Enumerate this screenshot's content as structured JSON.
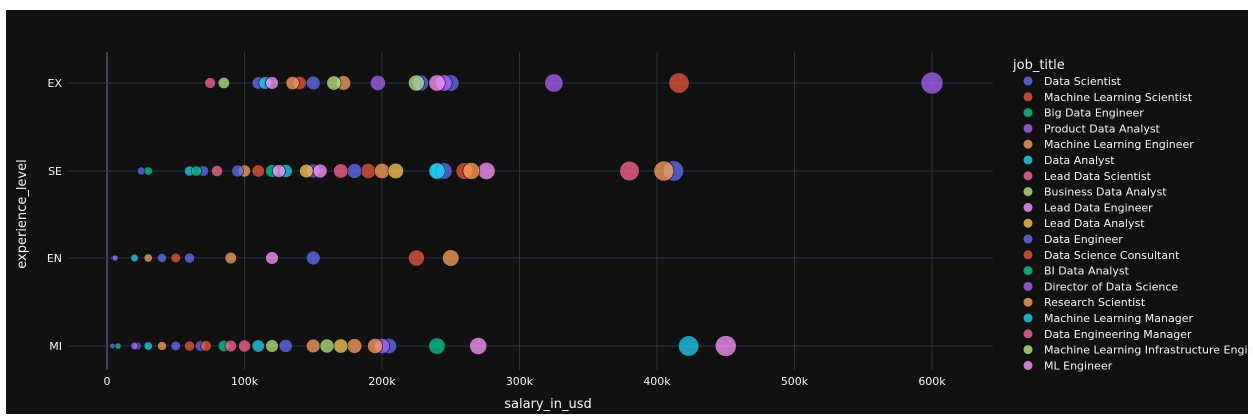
{
  "chart_data": {
    "type": "scatter",
    "xlabel": "salary_in_usd",
    "ylabel": "experience_level",
    "xlim": [
      -30000,
      645000
    ],
    "x_ticks": [
      0,
      100000,
      200000,
      300000,
      400000,
      500000,
      600000
    ],
    "x_tick_labels": [
      "0",
      "100k",
      "200k",
      "300k",
      "400k",
      "500k",
      "600k"
    ],
    "categories": [
      "MI",
      "EN",
      "SE",
      "EX"
    ],
    "grid": true,
    "legend_title": "job_title",
    "legend_position": "right",
    "series": [
      {
        "name": "Data Scientist",
        "color": "#636efa",
        "points": [
          {
            "x": 4000,
            "y": "MI"
          },
          {
            "x": 22000,
            "y": "MI"
          },
          {
            "x": 68000,
            "y": "MI"
          },
          {
            "x": 205000,
            "y": "MI"
          },
          {
            "x": 5000,
            "y": "EN"
          },
          {
            "x": 40000,
            "y": "EN"
          },
          {
            "x": 150000,
            "y": "EN"
          },
          {
            "x": 25000,
            "y": "SE"
          },
          {
            "x": 70000,
            "y": "SE"
          },
          {
            "x": 150000,
            "y": "SE"
          },
          {
            "x": 240000,
            "y": "SE"
          },
          {
            "x": 412000,
            "y": "SE"
          },
          {
            "x": 110000,
            "y": "EX"
          },
          {
            "x": 228000,
            "y": "EX"
          }
        ]
      },
      {
        "name": "Machine Learning Scientist",
        "color": "#ef553b",
        "points": [
          {
            "x": 72000,
            "y": "MI"
          },
          {
            "x": 225000,
            "y": "EN"
          },
          {
            "x": 190000,
            "y": "SE"
          },
          {
            "x": 260000,
            "y": "SE"
          },
          {
            "x": 416000,
            "y": "EX"
          },
          {
            "x": 140000,
            "y": "EX"
          }
        ]
      },
      {
        "name": "Big Data Engineer",
        "color": "#00cc96",
        "points": [
          {
            "x": 8000,
            "y": "MI"
          },
          {
            "x": 85000,
            "y": "MI"
          },
          {
            "x": 30000,
            "y": "SE"
          },
          {
            "x": 120000,
            "y": "SE"
          },
          {
            "x": 241000,
            "y": "SE"
          }
        ]
      },
      {
        "name": "Product Data Analyst",
        "color": "#ab63fa",
        "points": [
          {
            "x": 20000,
            "y": "MI"
          },
          {
            "x": 6000,
            "y": "EN"
          }
        ]
      },
      {
        "name": "Machine Learning Engineer",
        "color": "#ffa15a",
        "points": [
          {
            "x": 40000,
            "y": "MI"
          },
          {
            "x": 150000,
            "y": "MI"
          },
          {
            "x": 180000,
            "y": "MI"
          },
          {
            "x": 30000,
            "y": "EN"
          },
          {
            "x": 250000,
            "y": "EN"
          },
          {
            "x": 100000,
            "y": "SE"
          },
          {
            "x": 200000,
            "y": "SE"
          },
          {
            "x": 405000,
            "y": "SE"
          },
          {
            "x": 172000,
            "y": "EX"
          }
        ]
      },
      {
        "name": "Data Analyst",
        "color": "#19d3f3",
        "points": [
          {
            "x": 30000,
            "y": "MI"
          },
          {
            "x": 110000,
            "y": "MI"
          },
          {
            "x": 20000,
            "y": "EN"
          },
          {
            "x": 60000,
            "y": "SE"
          },
          {
            "x": 130000,
            "y": "SE"
          },
          {
            "x": 115000,
            "y": "EX"
          }
        ]
      },
      {
        "name": "Lead Data Scientist",
        "color": "#ff6692",
        "points": [
          {
            "x": 90000,
            "y": "MI"
          },
          {
            "x": 380000,
            "y": "SE"
          },
          {
            "x": 80000,
            "y": "SE"
          }
        ]
      },
      {
        "name": "Business Data Analyst",
        "color": "#b6e880",
        "points": [
          {
            "x": 120000,
            "y": "MI"
          },
          {
            "x": 85000,
            "y": "EX"
          },
          {
            "x": 165000,
            "y": "EX"
          }
        ]
      },
      {
        "name": "Lead Data Engineer",
        "color": "#ff97ff",
        "points": [
          {
            "x": 270000,
            "y": "MI"
          },
          {
            "x": 276000,
            "y": "SE"
          },
          {
            "x": 125000,
            "y": "SE"
          }
        ]
      },
      {
        "name": "Lead Data Analyst",
        "color": "#fecb52",
        "points": [
          {
            "x": 170000,
            "y": "MI"
          },
          {
            "x": 145000,
            "y": "SE"
          },
          {
            "x": 210000,
            "y": "SE"
          }
        ]
      },
      {
        "name": "Data Engineer",
        "color": "#636efa",
        "points": [
          {
            "x": 50000,
            "y": "MI"
          },
          {
            "x": 130000,
            "y": "MI"
          },
          {
            "x": 60000,
            "y": "EN"
          },
          {
            "x": 95000,
            "y": "SE"
          },
          {
            "x": 180000,
            "y": "SE"
          },
          {
            "x": 245000,
            "y": "SE"
          },
          {
            "x": 150000,
            "y": "EX"
          },
          {
            "x": 250000,
            "y": "EX"
          }
        ]
      },
      {
        "name": "Data Science Consultant",
        "color": "#ef553b",
        "points": [
          {
            "x": 60000,
            "y": "MI"
          },
          {
            "x": 50000,
            "y": "EN"
          },
          {
            "x": 110000,
            "y": "SE"
          }
        ]
      },
      {
        "name": "BI Data Analyst",
        "color": "#00cc96",
        "points": [
          {
            "x": 240000,
            "y": "MI"
          },
          {
            "x": 65000,
            "y": "SE"
          }
        ]
      },
      {
        "name": "Director of Data Science",
        "color": "#ab63fa",
        "points": [
          {
            "x": 200000,
            "y": "MI"
          },
          {
            "x": 325000,
            "y": "EX"
          },
          {
            "x": 600000,
            "y": "EX"
          },
          {
            "x": 197000,
            "y": "EX"
          },
          {
            "x": 245000,
            "y": "EX"
          }
        ]
      },
      {
        "name": "Research Scientist",
        "color": "#ffa15a",
        "points": [
          {
            "x": 195000,
            "y": "MI"
          },
          {
            "x": 90000,
            "y": "EN"
          },
          {
            "x": 265000,
            "y": "SE"
          },
          {
            "x": 135000,
            "y": "EX"
          }
        ]
      },
      {
        "name": "Machine Learning Manager",
        "color": "#19d3f3",
        "points": [
          {
            "x": 423000,
            "y": "MI"
          },
          {
            "x": 240000,
            "y": "SE"
          }
        ]
      },
      {
        "name": "Data Engineering Manager",
        "color": "#ff6692",
        "points": [
          {
            "x": 75000,
            "y": "EX"
          },
          {
            "x": 170000,
            "y": "SE"
          },
          {
            "x": 100000,
            "y": "MI"
          }
        ]
      },
      {
        "name": "Machine Learning Infrastructure Engineer",
        "color": "#b6e880",
        "points": [
          {
            "x": 225000,
            "y": "EX"
          },
          {
            "x": 160000,
            "y": "MI"
          }
        ]
      },
      {
        "name": "ML Engineer",
        "color": "#ff97ff",
        "points": [
          {
            "x": 450000,
            "y": "MI"
          },
          {
            "x": 120000,
            "y": "EN"
          },
          {
            "x": 155000,
            "y": "SE"
          },
          {
            "x": 120000,
            "y": "EX"
          },
          {
            "x": 240000,
            "y": "EX"
          }
        ]
      }
    ]
  }
}
